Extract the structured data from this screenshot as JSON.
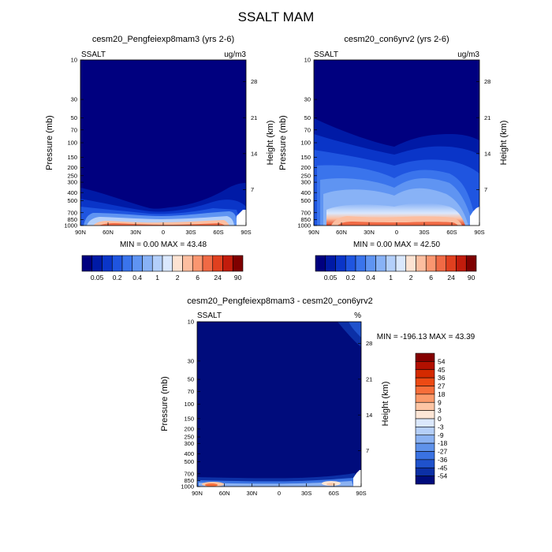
{
  "title": "SSALT MAM",
  "chart_data": [
    {
      "type": "heatmap",
      "title": "cesm20_Pengfeiexp8mam3 (yrs 2-6)",
      "variable_label": "SSALT",
      "units": "ug/m3",
      "ylabel": "Pressure (mb)",
      "y2label": "Height (km)",
      "x_ticks": [
        "90N",
        "60N",
        "30N",
        "0",
        "30S",
        "60S",
        "90S"
      ],
      "y_ticks": [
        "10",
        "30",
        "50",
        "70",
        "100",
        "150",
        "200",
        "250",
        "300",
        "400",
        "500",
        "700",
        "850",
        "1000"
      ],
      "y2_ticks": [
        "28",
        "21",
        "14",
        "7"
      ],
      "stats_text": "MIN =   0.00  MAX =  43.48",
      "min": 0.0,
      "max": 43.48,
      "colorbar_labels": [
        "0.05",
        "0.2",
        "0.4",
        "1",
        "2",
        "6",
        "24",
        "90"
      ]
    },
    {
      "type": "heatmap",
      "title": "cesm20_con6yrv2 (yrs 2-6)",
      "variable_label": "SSALT",
      "units": "ug/m3",
      "ylabel": "Pressure (mb)",
      "y2label": "Height (km)",
      "x_ticks": [
        "90N",
        "60N",
        "30N",
        "0",
        "30S",
        "60S",
        "90S"
      ],
      "y_ticks": [
        "10",
        "30",
        "50",
        "70",
        "100",
        "150",
        "200",
        "250",
        "300",
        "400",
        "500",
        "700",
        "850",
        "1000"
      ],
      "y2_ticks": [
        "28",
        "21",
        "14",
        "7"
      ],
      "stats_text": "MIN =   0.00  MAX =  42.50",
      "min": 0.0,
      "max": 42.5,
      "colorbar_labels": [
        "0.05",
        "0.2",
        "0.4",
        "1",
        "2",
        "6",
        "24",
        "90"
      ]
    },
    {
      "type": "heatmap",
      "title": "cesm20_Pengfeiexp8mam3 - cesm20_con6yrv2",
      "variable_label": "SSALT",
      "units": "%",
      "ylabel": "Pressure (mb)",
      "y2label": "Height (km)",
      "x_ticks": [
        "90N",
        "60N",
        "30N",
        "0",
        "30S",
        "60S",
        "90S"
      ],
      "y_ticks": [
        "10",
        "30",
        "50",
        "70",
        "100",
        "150",
        "200",
        "250",
        "300",
        "400",
        "500",
        "700",
        "850",
        "1000"
      ],
      "y2_ticks": [
        "28",
        "21",
        "14",
        "7"
      ],
      "stats_text": "MIN = -196.13  MAX =  43.39",
      "min": -196.13,
      "max": 43.39,
      "colorbar_labels": [
        "54",
        "45",
        "36",
        "27",
        "18",
        "9",
        "3",
        "0",
        "-3",
        "-9",
        "-18",
        "-27",
        "-36",
        "-45",
        "-54"
      ]
    }
  ],
  "colors": {
    "seq_palette": [
      "#00007f",
      "#001aa6",
      "#0a35c8",
      "#1f55e0",
      "#3a74ec",
      "#5f94f2",
      "#88b2f6",
      "#b3cffa",
      "#dae8fd",
      "#fde3d2",
      "#fcbea0",
      "#fa9670",
      "#f06a45",
      "#e0401f",
      "#c21c0c",
      "#7f0000"
    ],
    "div_palette": [
      "#840000",
      "#b21000",
      "#d42a00",
      "#ec4a14",
      "#f76e3a",
      "#fb9a6a",
      "#fdc5a4",
      "#fde6d6",
      "#dbe8fc",
      "#b5cff8",
      "#8bb2f2",
      "#5f92ea",
      "#3a72e2",
      "#1f52cc",
      "#0c30a6",
      "#000c7c"
    ]
  }
}
